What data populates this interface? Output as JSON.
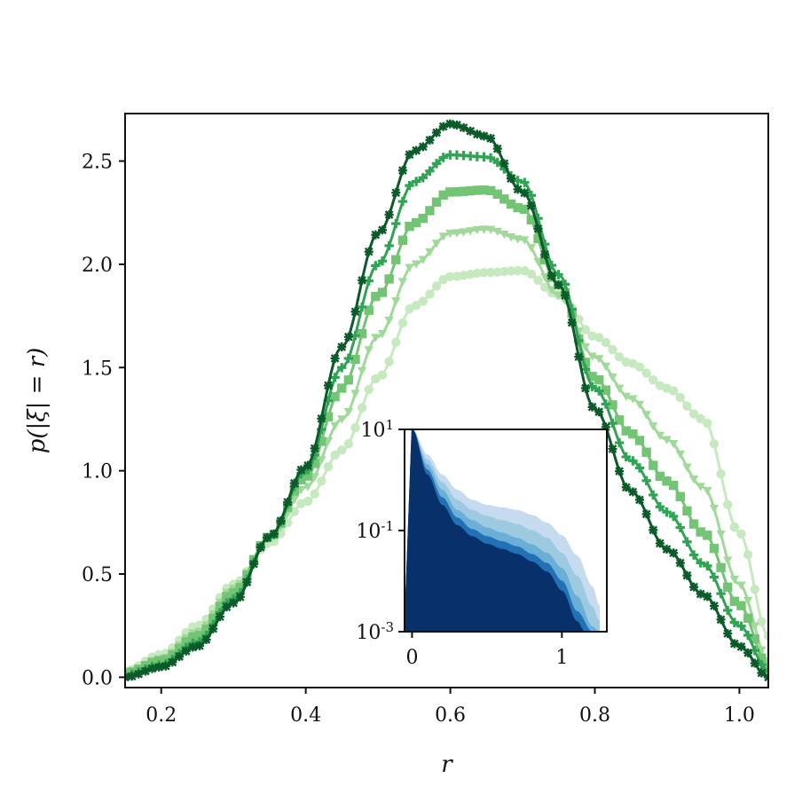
{
  "chart_data": [
    {
      "type": "line",
      "title": "",
      "xlabel": "r",
      "ylabel": "p(|ξ| = r)",
      "xlim": [
        0.15,
        1.04
      ],
      "ylim": [
        -0.05,
        2.73
      ],
      "xticks": [
        "0.2",
        "0.4",
        "0.6",
        "0.8",
        "1.0"
      ],
      "yticks": [
        "0.0",
        "0.5",
        "1.0",
        "1.5",
        "2.0",
        "2.5"
      ],
      "grid": false,
      "legend": "none",
      "series": [
        {
          "marker": "circle",
          "color": "#c7e9c0",
          "x": [
            0.15,
            0.2,
            0.25,
            0.3,
            0.35,
            0.4,
            0.45,
            0.5,
            0.55,
            0.6,
            0.65,
            0.7,
            0.75,
            0.8,
            0.85,
            0.9,
            0.95,
            1.0,
            1.04
          ],
          "y": [
            0.03,
            0.11,
            0.25,
            0.45,
            0.65,
            0.85,
            1.1,
            1.45,
            1.8,
            1.94,
            1.96,
            1.97,
            1.85,
            1.65,
            1.52,
            1.4,
            1.25,
            0.7,
            0.2
          ]
        },
        {
          "marker": "triangle-down",
          "color": "#a1d99b",
          "x": [
            0.15,
            0.2,
            0.25,
            0.3,
            0.35,
            0.4,
            0.45,
            0.5,
            0.55,
            0.6,
            0.65,
            0.7,
            0.75,
            0.8,
            0.85,
            0.9,
            0.95,
            1.0,
            1.04
          ],
          "y": [
            0.02,
            0.09,
            0.22,
            0.43,
            0.67,
            0.92,
            1.25,
            1.65,
            2.0,
            2.15,
            2.17,
            2.12,
            1.85,
            1.55,
            1.35,
            1.15,
            0.92,
            0.45,
            0.08
          ]
        },
        {
          "marker": "square",
          "color": "#74c476",
          "x": [
            0.15,
            0.2,
            0.25,
            0.3,
            0.35,
            0.4,
            0.45,
            0.5,
            0.55,
            0.6,
            0.65,
            0.7,
            0.75,
            0.8,
            0.85,
            0.9,
            0.95,
            1.0,
            1.04
          ],
          "y": [
            0.02,
            0.08,
            0.2,
            0.41,
            0.68,
            0.97,
            1.4,
            1.85,
            2.2,
            2.35,
            2.36,
            2.27,
            1.9,
            1.45,
            1.18,
            0.95,
            0.7,
            0.35,
            0.05
          ]
        },
        {
          "marker": "plus",
          "color": "#31a354",
          "x": [
            0.15,
            0.2,
            0.25,
            0.3,
            0.35,
            0.4,
            0.45,
            0.5,
            0.55,
            0.6,
            0.65,
            0.7,
            0.75,
            0.8,
            0.85,
            0.9,
            0.95,
            1.0,
            1.04
          ],
          "y": [
            0.01,
            0.06,
            0.17,
            0.38,
            0.68,
            1.0,
            1.5,
            2.0,
            2.4,
            2.53,
            2.52,
            2.4,
            1.95,
            1.4,
            1.05,
            0.8,
            0.55,
            0.25,
            0.03
          ]
        },
        {
          "marker": "star",
          "color": "#0b5a2a",
          "x": [
            0.15,
            0.2,
            0.25,
            0.3,
            0.35,
            0.4,
            0.45,
            0.5,
            0.55,
            0.6,
            0.65,
            0.7,
            0.75,
            0.8,
            0.85,
            0.9,
            0.95,
            1.0,
            1.04
          ],
          "y": [
            0.0,
            0.05,
            0.15,
            0.36,
            0.68,
            1.02,
            1.6,
            2.15,
            2.55,
            2.68,
            2.62,
            2.35,
            1.9,
            1.3,
            0.9,
            0.62,
            0.4,
            0.15,
            0.0
          ]
        }
      ]
    },
    {
      "type": "area",
      "title": "",
      "xlabel": "",
      "ylabel": "",
      "xlim": [
        -0.05,
        1.3
      ],
      "ylim_log10": [
        -3,
        1
      ],
      "yscale": "log",
      "xticks": [
        "0",
        "1"
      ],
      "yticks": [
        {
          "base": "10",
          "exp": "1"
        },
        {
          "base": "10",
          "exp": "-1"
        },
        {
          "base": "10",
          "exp": "-3"
        }
      ],
      "grid": false,
      "legend": "none",
      "series": [
        {
          "color": "#c6dbef",
          "x": [
            0,
            0.1,
            0.2,
            0.3,
            0.4,
            0.5,
            0.6,
            0.7,
            0.8,
            0.9,
            1.0,
            1.1,
            1.2,
            1.25
          ],
          "y_log10": [
            1,
            0.5,
            0.1,
            -0.2,
            -0.4,
            -0.5,
            -0.55,
            -0.6,
            -0.7,
            -0.85,
            -1.1,
            -1.5,
            -2.1,
            -2.5
          ]
        },
        {
          "color": "#9ecae1",
          "x": [
            0,
            0.1,
            0.2,
            0.3,
            0.4,
            0.5,
            0.6,
            0.7,
            0.8,
            0.9,
            1.0,
            1.1,
            1.2,
            1.25
          ],
          "y_log10": [
            1,
            0.4,
            -0.05,
            -0.4,
            -0.6,
            -0.72,
            -0.8,
            -0.88,
            -1.0,
            -1.15,
            -1.45,
            -1.9,
            -2.5,
            -2.8
          ]
        },
        {
          "color": "#6baed6",
          "x": [
            0,
            0.1,
            0.2,
            0.3,
            0.4,
            0.5,
            0.6,
            0.7,
            0.8,
            0.9,
            1.0,
            1.1,
            1.2,
            1.25
          ],
          "y_log10": [
            1,
            0.3,
            -0.2,
            -0.6,
            -0.8,
            -0.95,
            -1.05,
            -1.15,
            -1.28,
            -1.45,
            -1.75,
            -2.3,
            -2.9,
            -3.0
          ]
        },
        {
          "color": "#2171b5",
          "x": [
            0,
            0.1,
            0.2,
            0.3,
            0.4,
            0.5,
            0.6,
            0.7,
            0.8,
            0.9,
            1.0,
            1.1,
            1.2
          ],
          "y_log10": [
            1,
            0.2,
            -0.35,
            -0.75,
            -0.98,
            -1.12,
            -1.22,
            -1.32,
            -1.47,
            -1.65,
            -2.0,
            -2.6,
            -3.0
          ]
        },
        {
          "color": "#08306b",
          "x": [
            0,
            0.1,
            0.2,
            0.3,
            0.4,
            0.5,
            0.6,
            0.7,
            0.8,
            0.9,
            1.0,
            1.1,
            1.15
          ],
          "y_log10": [
            1,
            0.1,
            -0.5,
            -0.9,
            -1.12,
            -1.27,
            -1.37,
            -1.47,
            -1.62,
            -1.82,
            -2.2,
            -2.8,
            -3.0
          ]
        }
      ]
    }
  ]
}
